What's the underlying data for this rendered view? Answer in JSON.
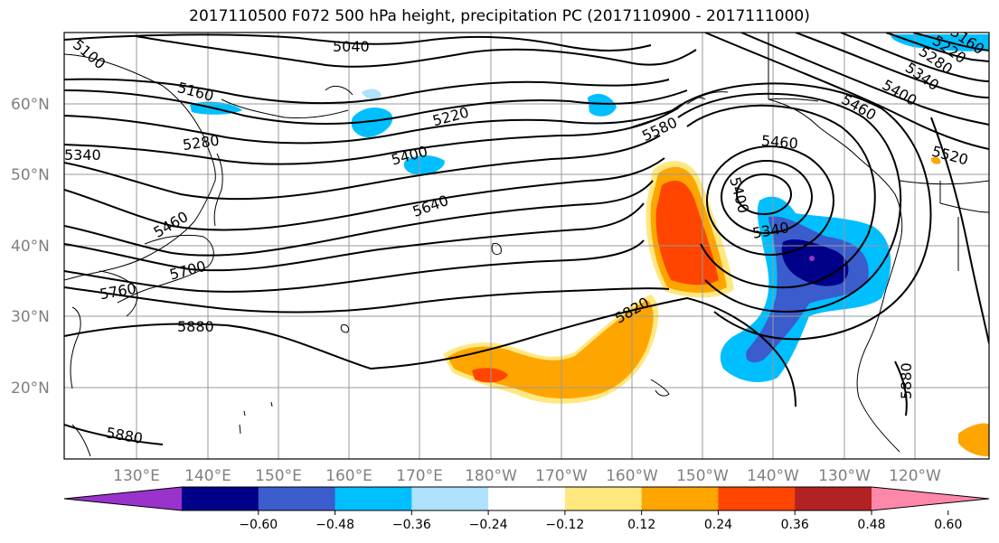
{
  "title": "2017110500 F072 500 hPa height, precipitation PC (2017110900 - 2017111000)",
  "longitude_labels": [
    "130°E",
    "140°E",
    "150°E",
    "160°E",
    "170°E",
    "180°W",
    "170°W",
    "160°W",
    "150°W",
    "140°W",
    "130°W",
    "120°W"
  ],
  "latitude_labels": [
    "60°N",
    "50°N",
    "40°N",
    "30°N",
    "20°N"
  ],
  "colorbar": {
    "ticks": [
      "−0.60",
      "−0.48",
      "−0.36",
      "−0.24",
      "−0.12",
      "0.12",
      "0.24",
      "0.36",
      "0.48",
      "0.60"
    ],
    "colors": [
      "#9933cc",
      "#000088",
      "#3a5ccc",
      "#00bfff",
      "#aee2ff",
      "#ffffff",
      "#ffe880",
      "#ffa500",
      "#ff4500",
      "#b22222",
      "#ff88aa"
    ]
  },
  "contour_labels": [
    "5040",
    "5100",
    "5160",
    "5220",
    "5280",
    "5340",
    "5400",
    "5460",
    "5520",
    "5580",
    "5640",
    "5700",
    "5760",
    "5820",
    "5880",
    "5880",
    "5880",
    "5460",
    "5400",
    "5340",
    "5460",
    "5400",
    "5340",
    "5280",
    "5220",
    "5160"
  ],
  "colors": {
    "grid": "#9a9a9a",
    "contour": "#000000",
    "coast": "#000000"
  }
}
